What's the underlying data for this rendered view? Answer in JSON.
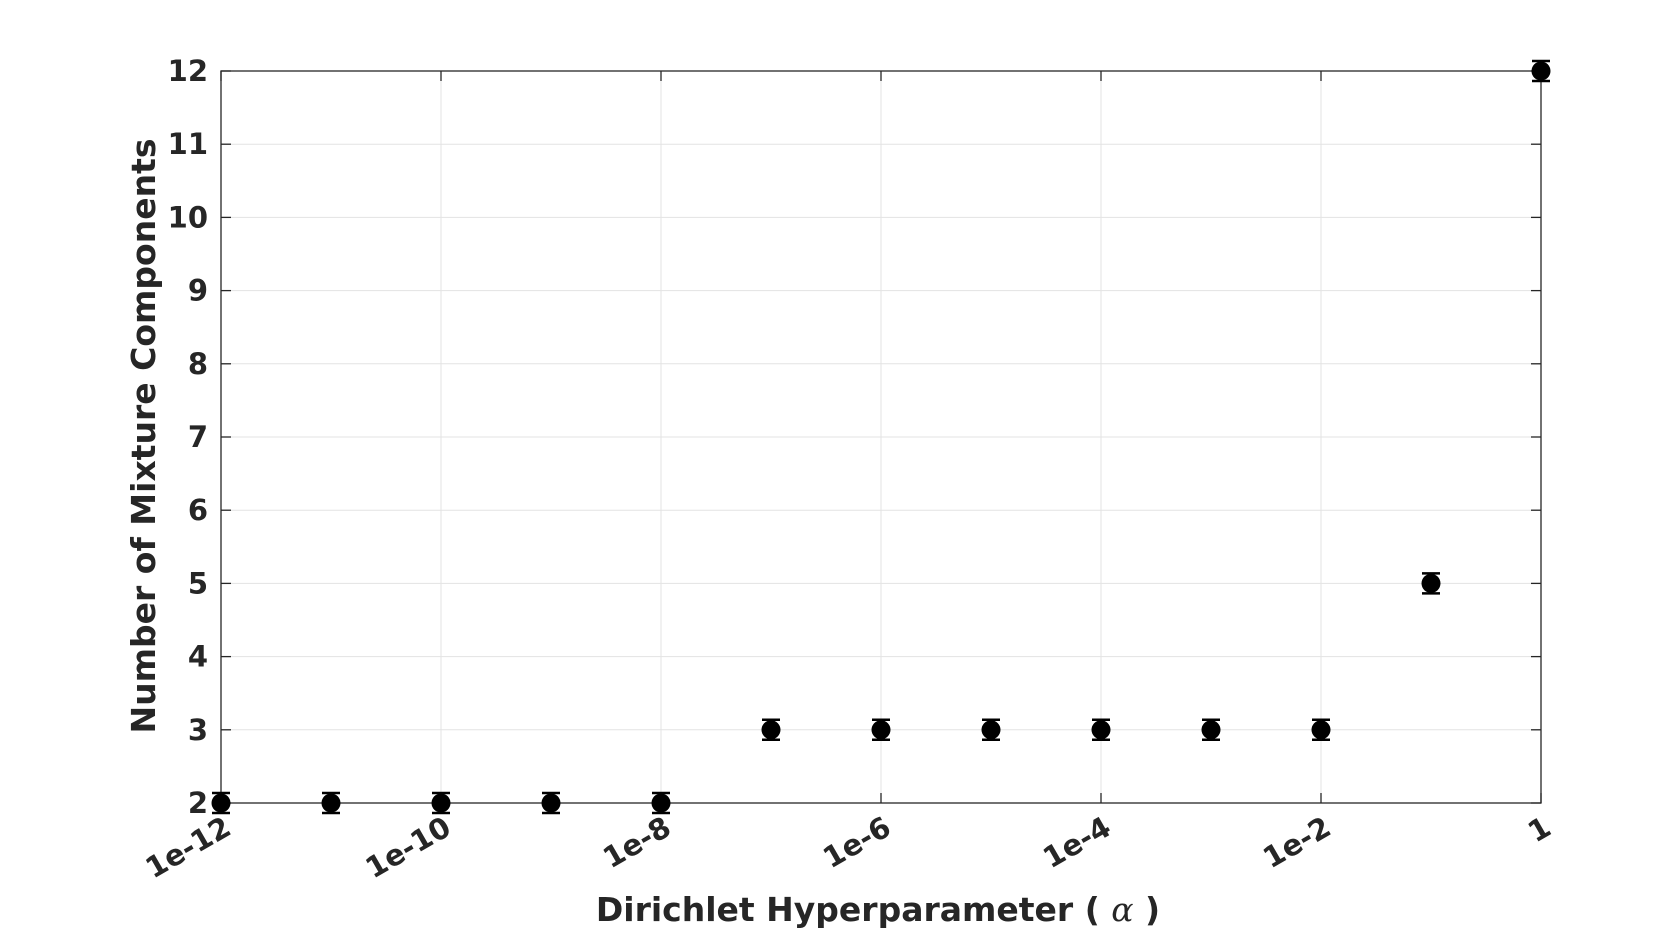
{
  "chart_data": {
    "type": "scatter",
    "title": "",
    "xlabel_prefix": "Dirichlet Hyperparameter ( ",
    "xlabel_symbol": "α",
    "xlabel_suffix": " )",
    "ylabel": "Number of Mixture Components",
    "xscale": "log",
    "xlim": [
      1e-12,
      1
    ],
    "ylim": [
      2,
      12
    ],
    "grid": true,
    "legend": "none",
    "marker": "filled circle with error bars",
    "marker_color": "#000000",
    "x_tick_values": [
      1e-12,
      1e-10,
      1e-08,
      1e-06,
      0.0001,
      0.01,
      1
    ],
    "x_tick_labels": [
      "1e-12",
      "1e-10",
      "1e-8",
      "1e-6",
      "1e-4",
      "1e-2",
      "1"
    ],
    "y_ticks": [
      2,
      3,
      4,
      5,
      6,
      7,
      8,
      9,
      10,
      11,
      12
    ],
    "x": [
      1e-12,
      1e-11,
      1e-10,
      1e-09,
      1e-08,
      1e-07,
      1e-06,
      1e-05,
      0.0001,
      0.001,
      0.01,
      0.1,
      1
    ],
    "y": [
      2,
      2,
      2,
      2,
      2,
      3,
      3,
      3,
      3,
      3,
      3,
      5,
      12
    ]
  }
}
